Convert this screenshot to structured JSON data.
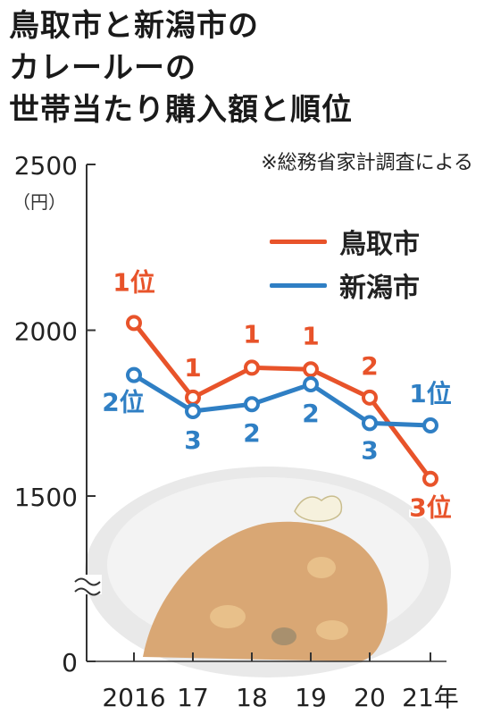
{
  "title_lines": [
    "鳥取市と新潟市の",
    "カレールーの",
    "世帯当たり購入額と順位"
  ],
  "source_note": "※総務省家計調査による",
  "unit_label": "（円）",
  "colors": {
    "tottori": "#e8532a",
    "niigata": "#2f7fc4",
    "axis": "#333333",
    "plate": "#e9e9e9",
    "curry": "#d9a774"
  },
  "chart_data": {
    "type": "line",
    "title": "鳥取市と新潟市のカレールーの世帯当たり購入額と順位",
    "x": [
      "2016",
      "17",
      "18",
      "19",
      "20",
      "21年"
    ],
    "ylabel": "（円）",
    "yticks": [
      "0",
      "1500",
      "2000",
      "2500"
    ],
    "ylim_display": [
      1500,
      2500
    ],
    "axis_break": true,
    "legend_position": "top-right",
    "series": [
      {
        "name": "鳥取市",
        "values": [
          2022,
          1797,
          1887,
          1882,
          1797,
          1552
        ],
        "rank_labels": [
          "1位",
          "1",
          "1",
          "1",
          "2",
          "3位"
        ]
      },
      {
        "name": "新潟市",
        "values": [
          1865,
          1756,
          1777,
          1837,
          1720,
          1713
        ],
        "rank_labels": [
          "2位",
          "3",
          "2",
          "2",
          "3",
          "1位"
        ]
      }
    ]
  }
}
